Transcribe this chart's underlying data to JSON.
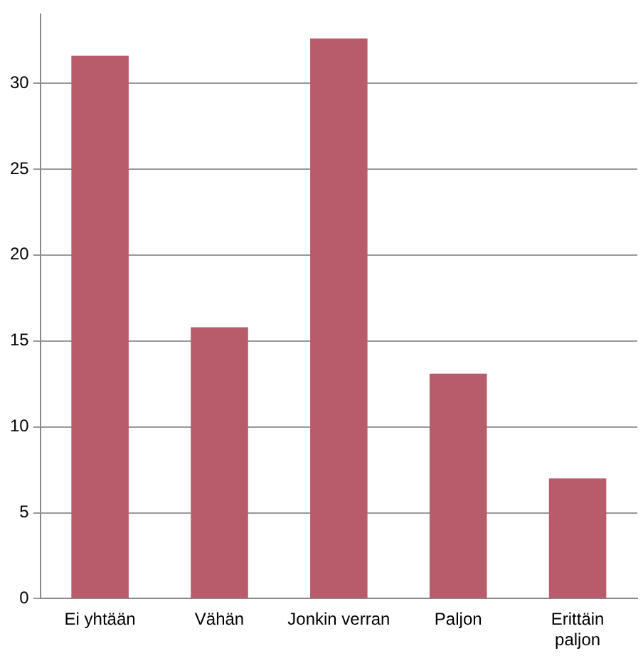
{
  "chart_data": {
    "type": "bar",
    "categories": [
      "Ei yhtään",
      "Vähän",
      "Jonkin verran",
      "Paljon",
      "Erittäin paljon"
    ],
    "values": [
      31.6,
      15.8,
      32.6,
      13.1,
      7.0
    ],
    "color": "#b85c6b",
    "ylim": [
      0,
      34
    ],
    "yticks": [
      0,
      5,
      10,
      15,
      20,
      25,
      30
    ],
    "grid": "y"
  }
}
